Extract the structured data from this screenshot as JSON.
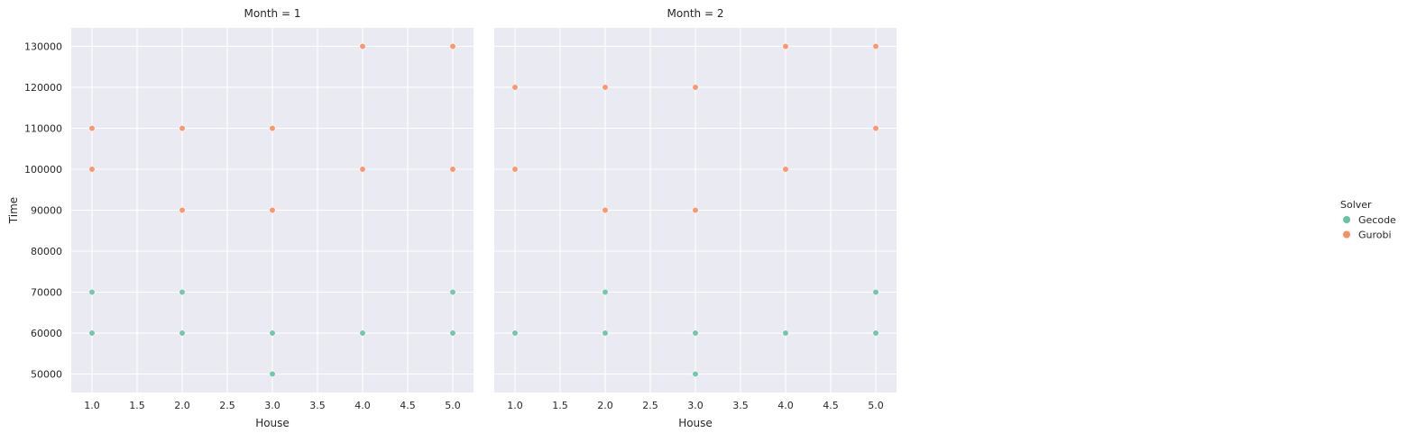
{
  "chart_data": {
    "type": "scatter",
    "facet_label": "Month",
    "xlabel": "House",
    "ylabel": "Time",
    "xlim": [
      0.77,
      5.23
    ],
    "ylim": [
      45500,
      134500
    ],
    "xticks": [
      1.0,
      1.5,
      2.0,
      2.5,
      3.0,
      3.5,
      4.0,
      4.5,
      5.0
    ],
    "xtick_labels": [
      "1.0",
      "1.5",
      "2.0",
      "2.5",
      "3.0",
      "3.5",
      "4.0",
      "4.5",
      "5.0"
    ],
    "yticks": [
      50000,
      60000,
      70000,
      80000,
      90000,
      100000,
      110000,
      120000,
      130000
    ],
    "ytick_labels": [
      "50000",
      "60000",
      "70000",
      "80000",
      "90000",
      "100000",
      "110000",
      "120000",
      "130000"
    ],
    "grid": true,
    "legend": {
      "title": "Solver",
      "placement": "right",
      "entries": [
        "Gecode",
        "Gurobi"
      ]
    },
    "colors": {
      "Gecode": "#66c2a5",
      "Gurobi": "#fc8d62"
    },
    "panels": [
      {
        "title": "Month = 1",
        "series": [
          {
            "name": "Gecode",
            "points": [
              [
                1,
                60000
              ],
              [
                1,
                70000
              ],
              [
                2,
                60000
              ],
              [
                2,
                70000
              ],
              [
                3,
                50000
              ],
              [
                3,
                60000
              ],
              [
                4,
                60000
              ],
              [
                5,
                60000
              ],
              [
                5,
                70000
              ]
            ]
          },
          {
            "name": "Gurobi",
            "points": [
              [
                1,
                100000
              ],
              [
                1,
                110000
              ],
              [
                2,
                90000
              ],
              [
                2,
                110000
              ],
              [
                3,
                90000
              ],
              [
                3,
                110000
              ],
              [
                4,
                100000
              ],
              [
                4,
                130000
              ],
              [
                5,
                100000
              ],
              [
                5,
                130000
              ]
            ]
          }
        ]
      },
      {
        "title": "Month = 2",
        "series": [
          {
            "name": "Gecode",
            "points": [
              [
                1,
                60000
              ],
              [
                2,
                60000
              ],
              [
                2,
                70000
              ],
              [
                3,
                50000
              ],
              [
                3,
                60000
              ],
              [
                4,
                60000
              ],
              [
                5,
                60000
              ],
              [
                5,
                70000
              ]
            ]
          },
          {
            "name": "Gurobi",
            "points": [
              [
                1,
                100000
              ],
              [
                1,
                120000
              ],
              [
                2,
                90000
              ],
              [
                2,
                120000
              ],
              [
                3,
                90000
              ],
              [
                3,
                120000
              ],
              [
                4,
                100000
              ],
              [
                4,
                130000
              ],
              [
                5,
                110000
              ],
              [
                5,
                130000
              ]
            ]
          }
        ]
      }
    ]
  }
}
